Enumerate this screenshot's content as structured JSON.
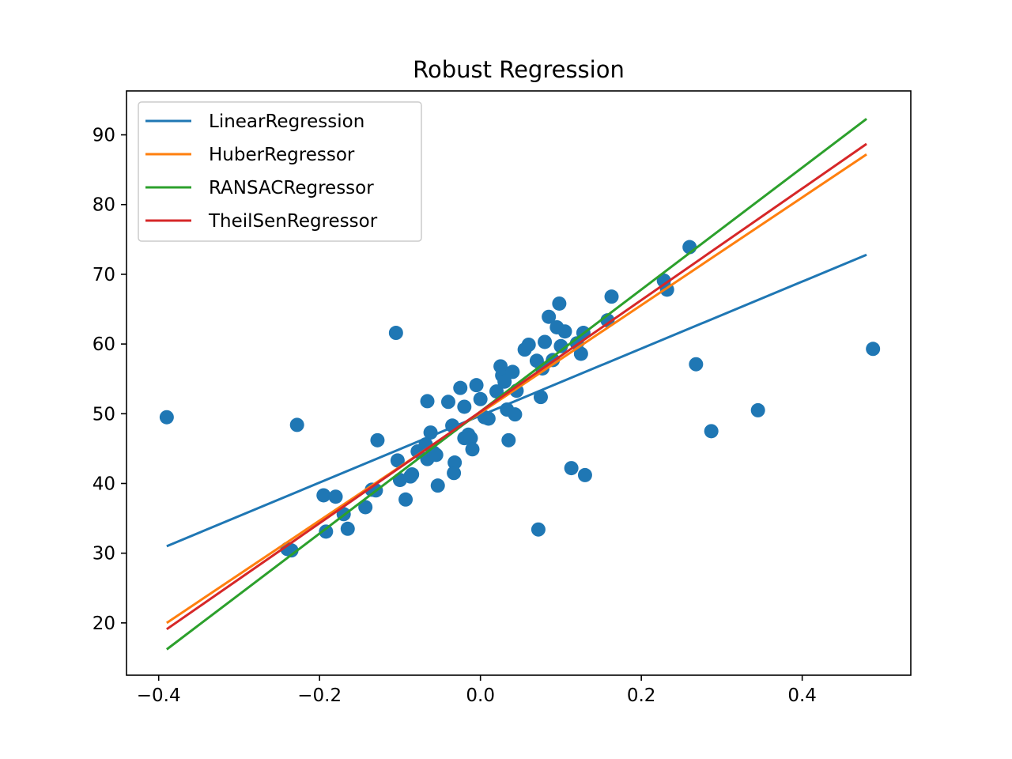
{
  "chart_data": {
    "type": "scatter",
    "title": "Robust Regression",
    "xlabel": "",
    "ylabel": "",
    "xlim": [
      -0.44,
      0.535
    ],
    "ylim": [
      12.5,
      96.3
    ],
    "xticks": [
      -0.4,
      -0.2,
      0.0,
      0.2,
      0.4
    ],
    "xtick_labels": [
      "−0.4",
      "−0.2",
      "0.0",
      "0.2",
      "0.4"
    ],
    "yticks": [
      20,
      30,
      40,
      50,
      60,
      70,
      80,
      90
    ],
    "ytick_labels": [
      "20",
      "30",
      "40",
      "50",
      "60",
      "70",
      "80",
      "90"
    ],
    "grid": false,
    "legend_position": "upper-left",
    "scatter": {
      "color": "#1f77b4",
      "points": [
        [
          -0.39,
          49.5
        ],
        [
          -0.228,
          48.4
        ],
        [
          -0.105,
          61.6
        ],
        [
          0.488,
          59.3
        ],
        [
          0.345,
          50.5
        ],
        [
          0.287,
          47.5
        ],
        [
          0.268,
          57.1
        ],
        [
          0.13,
          41.2
        ],
        [
          0.113,
          42.2
        ],
        [
          0.072,
          33.4
        ],
        [
          -0.24,
          30.6
        ],
        [
          -0.235,
          30.4
        ],
        [
          -0.192,
          33.1
        ],
        [
          -0.165,
          33.5
        ],
        [
          -0.17,
          35.6
        ],
        [
          -0.143,
          36.6
        ],
        [
          -0.195,
          38.3
        ],
        [
          -0.18,
          38.1
        ],
        [
          -0.135,
          39.1
        ],
        [
          -0.13,
          39.0
        ],
        [
          -0.128,
          46.2
        ],
        [
          -0.103,
          43.3
        ],
        [
          -0.1,
          40.5
        ],
        [
          -0.093,
          37.7
        ],
        [
          -0.087,
          41.0
        ],
        [
          -0.085,
          41.3
        ],
        [
          -0.078,
          44.6
        ],
        [
          -0.068,
          45.6
        ],
        [
          -0.066,
          43.5
        ],
        [
          -0.062,
          47.3
        ],
        [
          -0.058,
          44.4
        ],
        [
          -0.055,
          44.1
        ],
        [
          -0.053,
          39.7
        ],
        [
          -0.066,
          51.8
        ],
        [
          -0.04,
          51.7
        ],
        [
          -0.035,
          48.3
        ],
        [
          -0.032,
          43.0
        ],
        [
          -0.033,
          41.5
        ],
        [
          -0.025,
          53.7
        ],
        [
          -0.02,
          51.0
        ],
        [
          -0.02,
          46.5
        ],
        [
          -0.015,
          47.0
        ],
        [
          -0.012,
          46.5
        ],
        [
          -0.01,
          44.9
        ],
        [
          -0.005,
          54.1
        ],
        [
          0.0,
          52.1
        ],
        [
          0.005,
          49.5
        ],
        [
          0.01,
          49.3
        ],
        [
          0.02,
          53.2
        ],
        [
          0.025,
          56.8
        ],
        [
          0.027,
          55.5
        ],
        [
          0.03,
          54.6
        ],
        [
          0.033,
          50.6
        ],
        [
          0.035,
          46.2
        ],
        [
          0.04,
          56.0
        ],
        [
          0.043,
          49.9
        ],
        [
          0.045,
          53.3
        ],
        [
          0.055,
          59.2
        ],
        [
          0.06,
          59.9
        ],
        [
          0.07,
          57.6
        ],
        [
          0.075,
          52.4
        ],
        [
          0.077,
          56.5
        ],
        [
          0.08,
          60.3
        ],
        [
          0.085,
          63.9
        ],
        [
          0.09,
          57.7
        ],
        [
          0.095,
          62.4
        ],
        [
          0.098,
          65.8
        ],
        [
          0.1,
          59.7
        ],
        [
          0.105,
          61.8
        ],
        [
          0.12,
          60.1
        ],
        [
          0.125,
          58.6
        ],
        [
          0.128,
          61.6
        ],
        [
          0.158,
          63.4
        ],
        [
          0.163,
          66.8
        ],
        [
          0.228,
          69.1
        ],
        [
          0.232,
          67.8
        ],
        [
          0.26,
          73.9
        ]
      ]
    },
    "series": [
      {
        "name": "LinearRegression",
        "color": "#1f77b4",
        "x": [
          -0.39,
          0.48
        ],
        "y": [
          31.0,
          72.8
        ]
      },
      {
        "name": "HuberRegressor",
        "color": "#ff7f0e",
        "x": [
          -0.39,
          0.48
        ],
        "y": [
          20.0,
          87.2
        ]
      },
      {
        "name": "RANSACRegressor",
        "color": "#2ca02c",
        "x": [
          -0.39,
          0.48
        ],
        "y": [
          16.2,
          92.3
        ]
      },
      {
        "name": "TheilSenRegressor",
        "color": "#d62728",
        "x": [
          -0.39,
          0.48
        ],
        "y": [
          19.1,
          88.7
        ]
      }
    ]
  }
}
